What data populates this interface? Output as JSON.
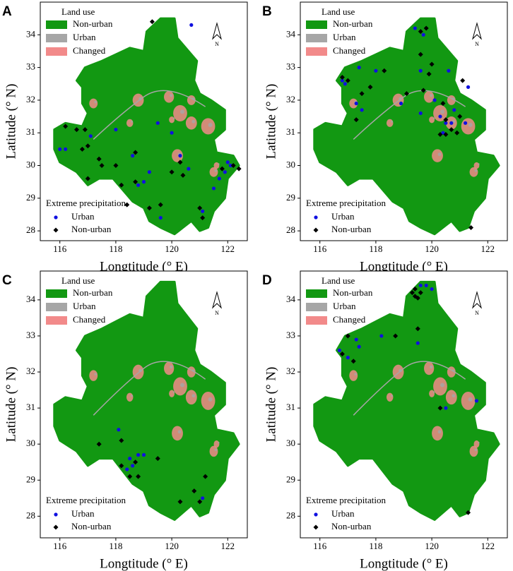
{
  "chart_data": [
    {
      "type": "scatter",
      "panel": "A",
      "x_label": "Longtitude (° E)",
      "y_label": "Latitude (° N)",
      "xlim": [
        115.3,
        122.7
      ],
      "ylim": [
        27.7,
        35.0
      ],
      "xticks": [
        116,
        118,
        120,
        122
      ],
      "yticks": [
        28,
        29,
        30,
        31,
        32,
        33,
        34
      ],
      "north_label": "N",
      "land_use": {
        "title": "Land use",
        "items": [
          {
            "name": "Non-urban",
            "color": "#129812"
          },
          {
            "name": "Urban",
            "color": "#a6a6a6"
          },
          {
            "name": "Changed",
            "color": "#f28a8a"
          }
        ]
      },
      "legend_title": "Extreme precipitation",
      "series": [
        {
          "name": "Urban",
          "color": "#1010e0",
          "marker": "circle",
          "x": [
            116.0,
            116.2,
            117.1,
            118.0,
            118.8,
            119.0,
            119.2,
            119.6,
            120.3,
            121.1,
            121.5,
            121.7,
            121.9,
            122.0,
            122.1,
            119.5,
            120.0,
            120.7,
            118.6,
            120.6
          ],
          "values": [
            30.5,
            30.5,
            30.9,
            31.1,
            29.4,
            29.5,
            29.8,
            28.4,
            30.3,
            28.6,
            29.3,
            29.6,
            29.8,
            30.1,
            30.0,
            31.3,
            31.0,
            34.3,
            30.3,
            29.9
          ]
        },
        {
          "name": "Non-urban",
          "color": "#000000",
          "marker": "diamond",
          "x": [
            116.2,
            116.6,
            116.9,
            117.0,
            116.8,
            117.4,
            117.5,
            117.0,
            118.0,
            118.2,
            118.4,
            118.7,
            119.2,
            119.6,
            120.0,
            120.4,
            121.0,
            121.1,
            121.8,
            122.2,
            122.4,
            119.3,
            120.3,
            118.7
          ],
          "values": [
            31.2,
            31.1,
            31.1,
            30.6,
            30.5,
            30.2,
            30.0,
            29.6,
            30.0,
            29.4,
            28.8,
            29.5,
            28.7,
            28.8,
            29.8,
            29.7,
            28.7,
            28.4,
            29.9,
            30.0,
            29.9,
            34.4,
            30.1,
            30.4
          ]
        }
      ]
    },
    {
      "type": "scatter",
      "panel": "B",
      "x_label": "Longtitude (° E)",
      "y_label": "Latitude (° N)",
      "xlim": [
        115.3,
        122.7
      ],
      "ylim": [
        27.7,
        35.0
      ],
      "xticks": [
        116,
        118,
        120,
        122
      ],
      "yticks": [
        28,
        29,
        30,
        31,
        32,
        33,
        34
      ],
      "north_label": "N",
      "land_use": {
        "title": "Land use",
        "items": [
          {
            "name": "Non-urban",
            "color": "#129812"
          },
          {
            "name": "Urban",
            "color": "#a6a6a6"
          },
          {
            "name": "Changed",
            "color": "#f28a8a"
          }
        ]
      },
      "legend_title": "Extreme precipitation",
      "series": [
        {
          "name": "Urban",
          "color": "#1010e0",
          "marker": "circle",
          "x": [
            119.4,
            119.7,
            116.8,
            116.9,
            117.3,
            117.5,
            117.4,
            118.0,
            118.9,
            119.6,
            120.1,
            120.3,
            120.5,
            120.7,
            120.8,
            121.2,
            121.3,
            119.6,
            120.6,
            120.4
          ],
          "values": [
            34.2,
            34.0,
            32.6,
            32.5,
            31.9,
            31.7,
            33.0,
            32.9,
            31.9,
            32.9,
            32.0,
            31.5,
            31.3,
            31.3,
            31.7,
            31.3,
            32.4,
            31.6,
            32.9,
            31.0
          ]
        },
        {
          "name": "Non-urban",
          "color": "#000000",
          "marker": "diamond",
          "x": [
            119.6,
            119.8,
            119.6,
            120.0,
            116.8,
            117.0,
            117.5,
            117.3,
            118.3,
            119.1,
            119.7,
            119.9,
            120.4,
            120.5,
            120.7,
            120.9,
            121.0,
            121.1,
            120.3,
            120.5,
            121.4,
            117.8
          ],
          "values": [
            34.1,
            34.2,
            33.4,
            33.1,
            32.7,
            32.6,
            32.2,
            31.4,
            32.9,
            32.2,
            32.3,
            32.8,
            31.9,
            31.4,
            31.1,
            31.0,
            31.5,
            32.6,
            30.95,
            30.95,
            28.1,
            32.4
          ]
        }
      ]
    },
    {
      "type": "scatter",
      "panel": "C",
      "x_label": "Longtitude (° E)",
      "y_label": "Latitude (° N)",
      "xlim": [
        115.3,
        122.7
      ],
      "ylim": [
        27.4,
        34.8
      ],
      "xticks": [
        116,
        118,
        120,
        122
      ],
      "yticks": [
        28,
        29,
        30,
        31,
        32,
        33,
        34
      ],
      "north_label": "N",
      "land_use": {
        "title": "Land use",
        "items": [
          {
            "name": "Non-urban",
            "color": "#129812"
          },
          {
            "name": "Urban",
            "color": "#a6a6a6"
          },
          {
            "name": "Changed",
            "color": "#f28a8a"
          }
        ]
      },
      "legend_title": "Extreme precipitation",
      "series": [
        {
          "name": "Urban",
          "color": "#1010e0",
          "marker": "circle",
          "x": [
            118.1,
            118.6,
            118.8,
            119.0,
            121.1,
            118.4,
            118.5
          ],
          "values": [
            30.4,
            29.4,
            29.7,
            29.7,
            28.5,
            29.3,
            29.6
          ]
        },
        {
          "name": "Non-urban",
          "color": "#000000",
          "marker": "diamond",
          "x": [
            117.4,
            118.2,
            118.2,
            118.5,
            118.7,
            119.5,
            120.3,
            120.8,
            121.0,
            121.2,
            118.8
          ],
          "values": [
            30.0,
            30.1,
            29.4,
            29.1,
            29.5,
            29.6,
            28.4,
            28.7,
            28.4,
            29.1,
            29.1
          ]
        }
      ]
    },
    {
      "type": "scatter",
      "panel": "D",
      "x_label": "Longtitude (° E)",
      "y_label": "Latitude (° N)",
      "xlim": [
        115.3,
        122.7
      ],
      "ylim": [
        27.4,
        34.8
      ],
      "xticks": [
        116,
        118,
        120,
        122
      ],
      "yticks": [
        28,
        29,
        30,
        31,
        32,
        33,
        34
      ],
      "north_label": "N",
      "land_use": {
        "title": "Land use",
        "items": [
          {
            "name": "Non-urban",
            "color": "#129812"
          },
          {
            "name": "Urban",
            "color": "#a6a6a6"
          },
          {
            "name": "Changed",
            "color": "#f28a8a"
          }
        ]
      },
      "legend_title": "Extreme precipitation",
      "series": [
        {
          "name": "Urban",
          "color": "#1010e0",
          "marker": "circle",
          "x": [
            119.6,
            119.8,
            120.0,
            116.7,
            117.0,
            117.4,
            118.2,
            119.5,
            120.5,
            121.6,
            117.3
          ],
          "values": [
            34.4,
            34.4,
            34.3,
            32.6,
            32.4,
            32.7,
            33.0,
            32.8,
            31.0,
            31.2,
            32.9
          ]
        },
        {
          "name": "Non-urban",
          "color": "#000000",
          "marker": "diamond",
          "x": [
            119.3,
            119.4,
            119.5,
            119.6,
            119.4,
            116.8,
            117.2,
            117.0,
            118.7,
            120.3,
            121.3,
            119.5
          ],
          "values": [
            34.2,
            34.1,
            34.05,
            34.2,
            34.3,
            32.5,
            32.3,
            33.0,
            33.0,
            31.0,
            28.1,
            33.2
          ]
        }
      ]
    }
  ]
}
